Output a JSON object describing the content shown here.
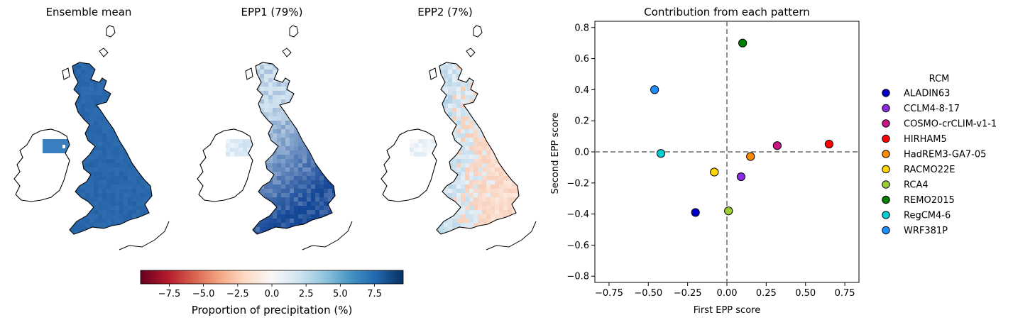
{
  "maps": {
    "panels": [
      {
        "title": "Ensemble mean"
      },
      {
        "title": "EPP1 (79%)"
      },
      {
        "title": "EPP2 (7%)"
      }
    ],
    "colorbar": {
      "label": "Proportion of precipitation (%)",
      "ticks": [
        "−7.5",
        "−5.0",
        "−2.5",
        "0.0",
        "2.5",
        "5.0",
        "7.5"
      ],
      "range": [
        -9.6,
        9.6
      ],
      "colors": [
        "#67001f",
        "#b2182b",
        "#d6604d",
        "#f4a582",
        "#fddbc7",
        "#f7f7f7",
        "#d1e5f0",
        "#92c5de",
        "#4393c3",
        "#2166ac",
        "#053061"
      ]
    }
  },
  "scatter": {
    "title": "Contribution from each pattern",
    "xlabel": "First EPP score",
    "ylabel": "Second EPP score",
    "xticks": [
      "−0.75",
      "−0.50",
      "−0.25",
      "0.00",
      "0.25",
      "0.50",
      "0.75"
    ],
    "yticks": [
      "0.8",
      "0.6",
      "0.4",
      "0.2",
      "0.0",
      "−0.2",
      "−0.4",
      "−0.6",
      "−0.8"
    ],
    "legend_title": "RCM"
  },
  "chart_data": {
    "type": "scatter",
    "title": "Contribution from each pattern",
    "xlabel": "First EPP score",
    "ylabel": "Second EPP score",
    "xlim": [
      -0.84,
      0.84
    ],
    "ylim": [
      -0.84,
      0.84
    ],
    "grid": false,
    "legend": "right",
    "reference_lines": {
      "x": 0,
      "y": 0,
      "style": "dashed"
    },
    "series": [
      {
        "name": "ALADIN63",
        "color": "#0000cd",
        "x": -0.2,
        "y": -0.39
      },
      {
        "name": "CCLM4-8-17",
        "color": "#8a2be2",
        "x": 0.09,
        "y": -0.16
      },
      {
        "name": "COSMO-crCLIM-v1-1",
        "color": "#c71585",
        "x": 0.32,
        "y": 0.04
      },
      {
        "name": "HIRHAM5",
        "color": "#ff0000",
        "x": 0.65,
        "y": 0.05
      },
      {
        "name": "HadREM3-GA7-05",
        "color": "#ff8c00",
        "x": 0.15,
        "y": -0.03
      },
      {
        "name": "RACMO22E",
        "color": "#ffd700",
        "x": -0.08,
        "y": -0.13
      },
      {
        "name": "RCA4",
        "color": "#9acd32",
        "x": 0.01,
        "y": -0.38
      },
      {
        "name": "REMO2015",
        "color": "#008000",
        "x": 0.1,
        "y": 0.7
      },
      {
        "name": "RegCM4-6",
        "color": "#00ced1",
        "x": -0.42,
        "y": -0.01
      },
      {
        "name": "WRF381P",
        "color": "#1e90ff",
        "x": -0.46,
        "y": 0.4
      }
    ]
  }
}
